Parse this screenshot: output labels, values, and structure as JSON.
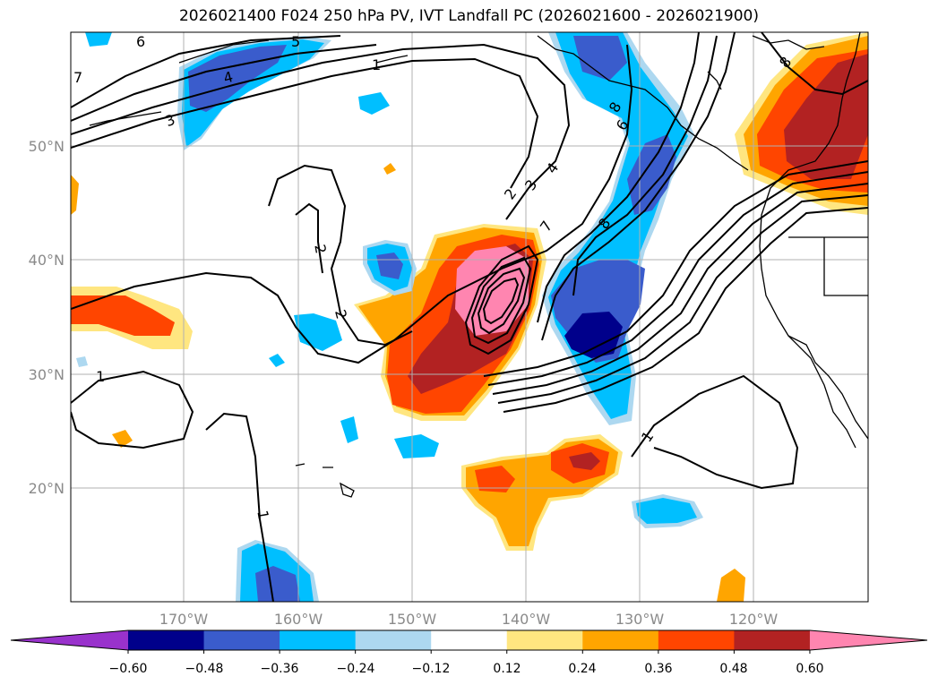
{
  "title": "2026021400 F024 250 hPa PV, IVT Landfall PC (2026021600 - 2026021900)",
  "lat_labels": [
    "50°N",
    "40°N",
    "30°N",
    "20°N"
  ],
  "lon_labels": [
    "170°W",
    "160°W",
    "150°W",
    "140°W",
    "130°W",
    "120°W"
  ],
  "colorbar": {
    "ticks": [
      "−0.60",
      "−0.48",
      "−0.36",
      "−0.24",
      "−0.12",
      "0.12",
      "0.24",
      "0.36",
      "0.48",
      "0.60"
    ],
    "colors": [
      "#9932cc",
      "#00008b",
      "#3a5ccc",
      "#00bfff",
      "#add8f0",
      "#ffffff",
      "#ffe680",
      "#ffa500",
      "#ff4500",
      "#b22222",
      "#ff85b0"
    ]
  },
  "contour_labels": [
    "1",
    "2",
    "3",
    "4",
    "5",
    "6",
    "7",
    "8",
    "2",
    "2",
    "1",
    "1",
    "3",
    "4",
    "7",
    "8",
    "6",
    "8",
    "1"
  ],
  "colors": {
    "grid": "#b0b0b0",
    "coast": "#000000",
    "contour": "#000000"
  }
}
